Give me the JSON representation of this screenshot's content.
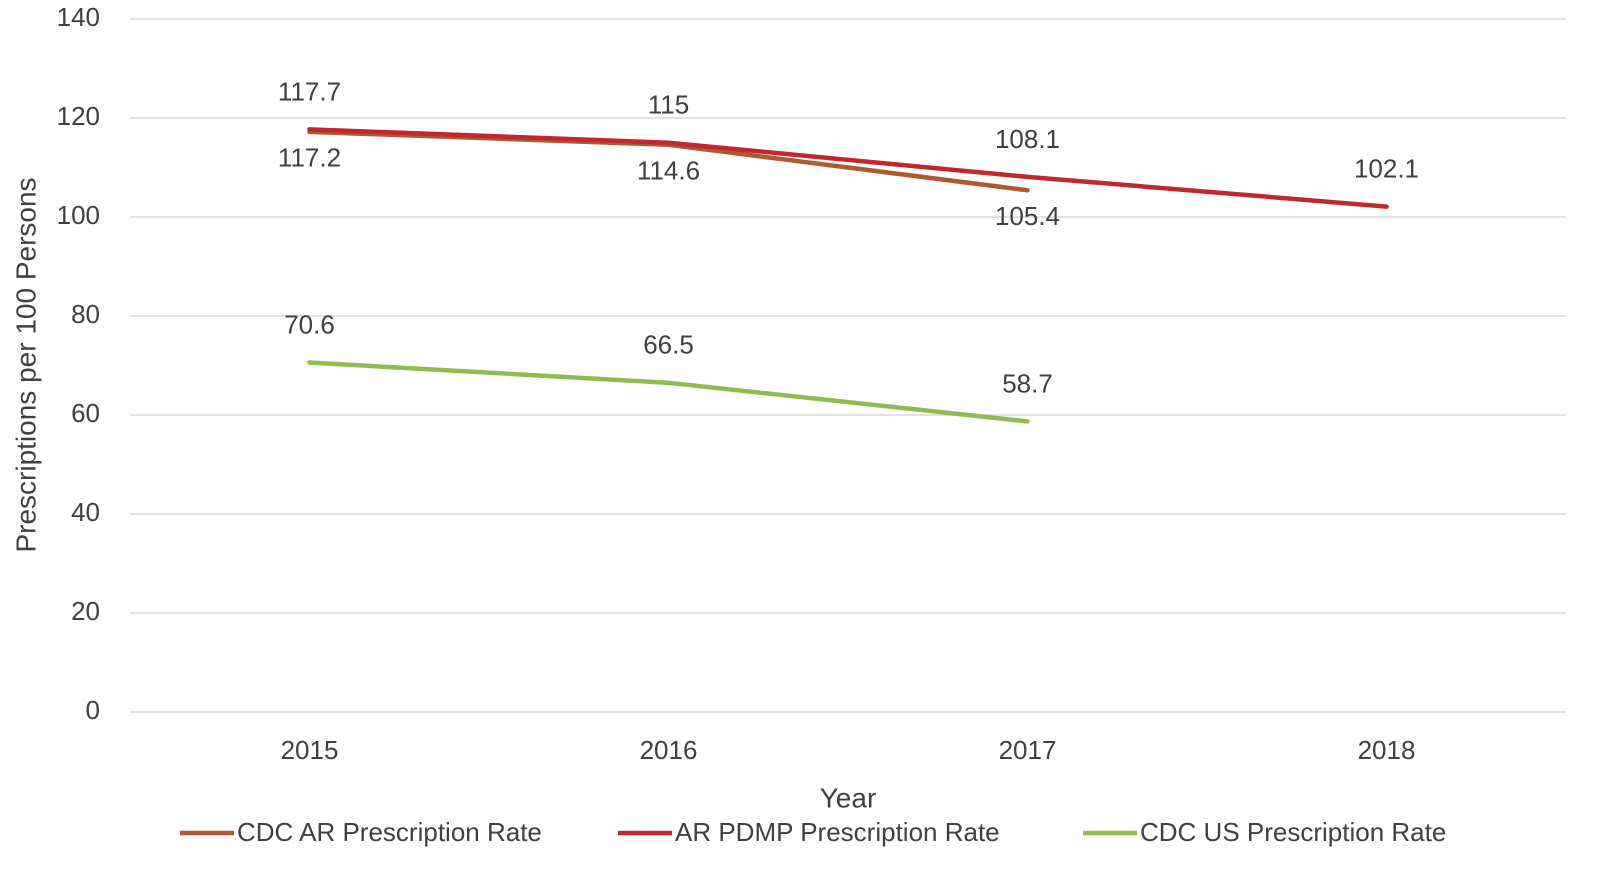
{
  "chart_data": {
    "type": "line",
    "x_label": "Year",
    "y_label": "Prescriptions per 100 Persons",
    "categories": [
      "2015",
      "2016",
      "2017",
      "2018"
    ],
    "series": [
      {
        "name": "CDC AR Prescription Rate",
        "color": "#ae5a30",
        "values": [
          117.2,
          114.6,
          105.4,
          null
        ]
      },
      {
        "name": "AR PDMP Prescription Rate",
        "color": "#c1272d",
        "values": [
          117.7,
          115,
          108.1,
          102.1
        ]
      },
      {
        "name": "CDC US Prescription Rate",
        "color": "#8fbc4e",
        "values": [
          70.6,
          66.5,
          58.7,
          null
        ]
      }
    ],
    "ylim": [
      0,
      140
    ],
    "yticks": [
      0,
      20,
      40,
      60,
      80,
      100,
      120,
      140
    ],
    "grid": true,
    "legend": "bottom"
  }
}
